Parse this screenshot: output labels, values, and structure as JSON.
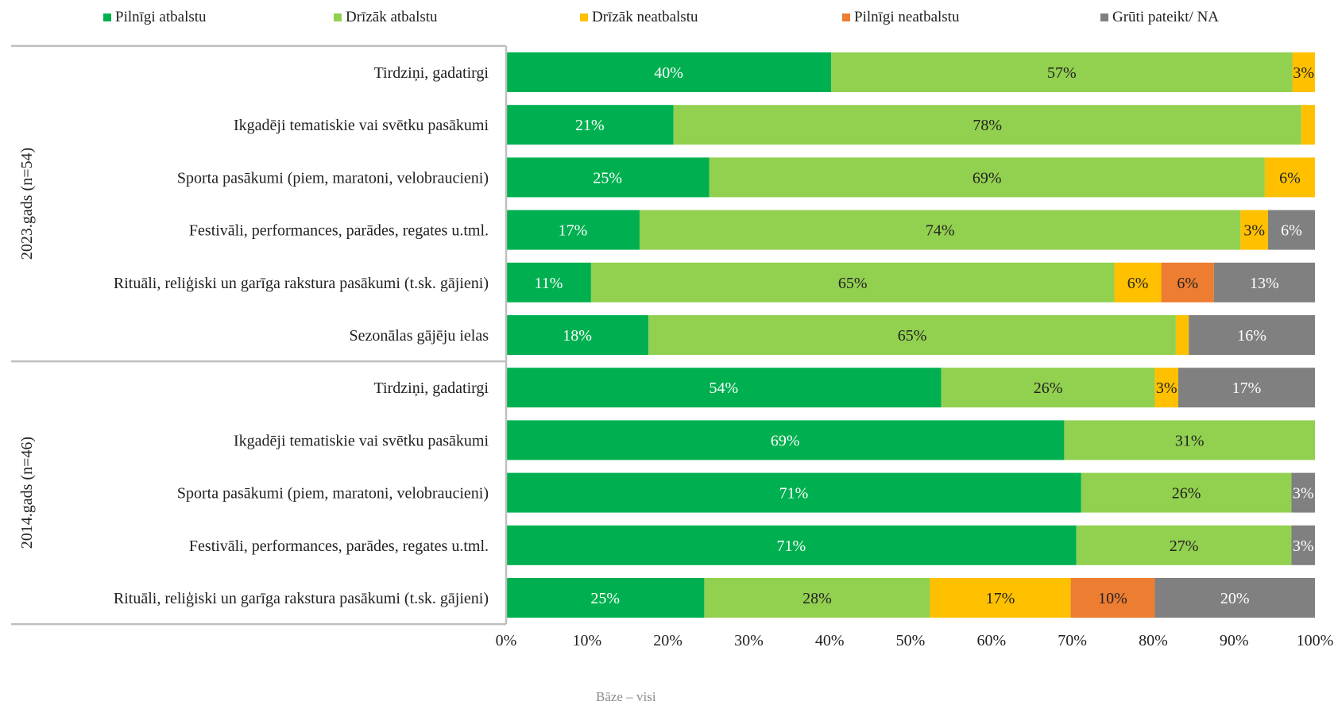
{
  "chart_data": {
    "type": "bar",
    "orientation": "horizontal-stacked-100",
    "legend_placement": "top",
    "grid": false,
    "xlim": [
      0,
      100
    ],
    "x_ticks": [
      "0%",
      "10%",
      "20%",
      "30%",
      "40%",
      "50%",
      "60%",
      "70%",
      "80%",
      "90%",
      "100%"
    ],
    "series": [
      {
        "name": "Pilnīgi atbalstu",
        "color": "#00b050",
        "label_color": "#ffffff"
      },
      {
        "name": "Drīzāk atbalstu",
        "color": "#92d050",
        "label_color": "#222222"
      },
      {
        "name": "Drīzāk neatbalstu",
        "color": "#ffc000",
        "label_color": "#222222"
      },
      {
        "name": "Pilnīgi neatbalstu",
        "color": "#ed7d31",
        "label_color": "#222222"
      },
      {
        "name": "Grūti pateikt/ NA",
        "color": "#808080",
        "label_color": "#ffffff"
      }
    ],
    "groups": [
      {
        "label": "2023.gads (n=54)",
        "rows": [
          {
            "category": "Tirdziņi, gadatirgi",
            "values": [
              40.2,
              57.0,
              2.8,
              0,
              0
            ],
            "labels": [
              "40%",
              "57%",
              "3%",
              "",
              ""
            ]
          },
          {
            "category": "Ikgadēji tematiskie vai svētku pasākumi",
            "values": [
              20.7,
              77.6,
              1.7,
              0,
              0
            ],
            "labels": [
              "21%",
              "78%",
              "",
              "",
              ""
            ]
          },
          {
            "category": "Sporta pasākumi (piem, maratoni, velobraucieni)",
            "values": [
              25.1,
              68.7,
              6.2,
              0,
              0
            ],
            "labels": [
              "25%",
              "69%",
              "6%",
              "",
              ""
            ]
          },
          {
            "category": "Festivāli, performances, parādes, regates u.tml.",
            "values": [
              16.5,
              74.3,
              3.4,
              0,
              5.8
            ],
            "labels": [
              "17%",
              "74%",
              "3%",
              "",
              "6%"
            ]
          },
          {
            "category": "Rituāli, reliģiski un garīga rakstura pasākumi (t.sk. gājieni)",
            "values": [
              10.5,
              64.7,
              5.8,
              6.5,
              12.5
            ],
            "labels": [
              "11%",
              "65%",
              "6%",
              "6%",
              "13%"
            ]
          },
          {
            "category": "Sezonālas gājēju ielas",
            "values": [
              17.6,
              65.2,
              1.6,
              0,
              15.6
            ],
            "labels": [
              "18%",
              "65%",
              "",
              "",
              "16%"
            ]
          }
        ]
      },
      {
        "label": "2014.gads (n=46)",
        "rows": [
          {
            "category": "Tirdziņi, gadatirgi",
            "values": [
              53.8,
              26.4,
              2.9,
              0,
              16.9
            ],
            "labels": [
              "54%",
              "26%",
              "3%",
              "",
              "17%"
            ]
          },
          {
            "category": "Ikgadēji tematiskie vai svētku pasākumi",
            "values": [
              69.0,
              31.0,
              0,
              0,
              0
            ],
            "labels": [
              "69%",
              "31%",
              "",
              "",
              ""
            ]
          },
          {
            "category": "Sporta pasākumi (piem, maratoni, velobraucieni)",
            "values": [
              71.1,
              26.0,
              0,
              0,
              2.9
            ],
            "labels": [
              "71%",
              "26%",
              "",
              "",
              "3%"
            ]
          },
          {
            "category": "Festivāli, performances, parādes, regates u.tml.",
            "values": [
              70.5,
              26.6,
              0,
              0,
              2.9
            ],
            "labels": [
              "71%",
              "27%",
              "",
              "",
              "3%"
            ]
          },
          {
            "category": "Rituāli, reliģiski un garīga rakstura pasākumi (t.sk. gājieni)",
            "values": [
              24.5,
              27.9,
              17.4,
              10.4,
              19.8
            ],
            "labels": [
              "25%",
              "28%",
              "17%",
              "10%",
              "20%"
            ]
          }
        ]
      }
    ],
    "footnote": "Bāze – visi"
  }
}
